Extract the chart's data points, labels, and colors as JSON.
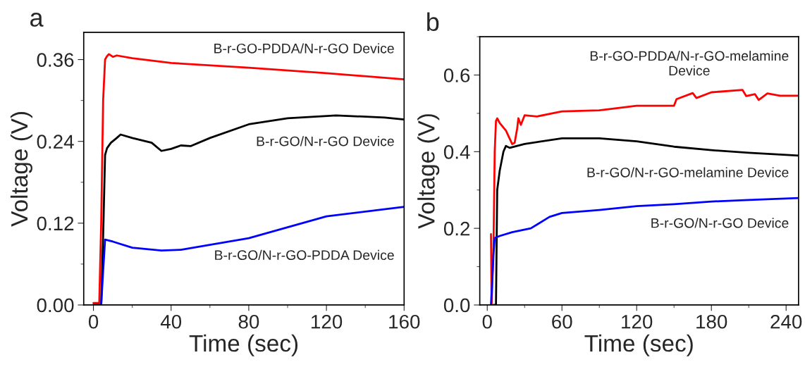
{
  "chart_data": [
    {
      "type": "line",
      "title": "a",
      "xlabel": "Time (sec)",
      "ylabel": "Voltage (V)",
      "xlim": [
        -5,
        160
      ],
      "ylim": [
        0,
        0.4
      ],
      "xticks": [
        0,
        40,
        80,
        120,
        160
      ],
      "yticks": [
        {
          "value": 0,
          "label": "0.00"
        },
        {
          "value": 0.12,
          "label": "0.12"
        },
        {
          "value": 0.24,
          "label": "0.24"
        },
        {
          "value": 0.36,
          "label": "0.36"
        }
      ],
      "grid": false,
      "legend": false,
      "marker": "none",
      "line_style": "solid",
      "series": [
        {
          "name": "B-r-GO-PDDA/N-r-GO Device",
          "color": "#ff0000",
          "x": [
            0,
            3,
            4,
            5,
            6,
            7,
            8,
            10,
            12,
            20,
            40,
            80,
            120,
            160
          ],
          "values": [
            0.003,
            0.003,
            0.12,
            0.3,
            0.36,
            0.365,
            0.368,
            0.364,
            0.366,
            0.362,
            0.355,
            0.348,
            0.34,
            0.331
          ]
        },
        {
          "name": "B-r-GO/N-r-GO Device",
          "color": "#000000",
          "x": [
            0,
            4,
            5,
            6,
            7,
            9,
            12,
            14,
            20,
            30,
            35,
            40,
            45,
            50,
            60,
            80,
            100,
            125,
            150,
            160
          ],
          "values": [
            0,
            0,
            0.1,
            0.22,
            0.23,
            0.238,
            0.245,
            0.25,
            0.245,
            0.238,
            0.226,
            0.229,
            0.234,
            0.233,
            0.245,
            0.265,
            0.274,
            0.278,
            0.275,
            0.272
          ]
        },
        {
          "name": "B-r-GO/N-r-GO-PDDA Device",
          "color": "#0000ff",
          "x": [
            0,
            4,
            5,
            6,
            10,
            20,
            35,
            45,
            80,
            120,
            160
          ],
          "values": [
            0,
            0,
            0.05,
            0.096,
            0.093,
            0.084,
            0.08,
            0.081,
            0.098,
            0.13,
            0.144
          ]
        }
      ]
    },
    {
      "type": "line",
      "title": "b",
      "xlabel": "Time (sec)",
      "ylabel": "Voltage (V)",
      "xlim": [
        -6,
        250
      ],
      "ylim": [
        0,
        0.7
      ],
      "xticks": [
        0,
        60,
        120,
        180,
        240
      ],
      "yticks": [
        {
          "value": 0,
          "label": "0.0"
        },
        {
          "value": 0.2,
          "label": "0.2"
        },
        {
          "value": 0.4,
          "label": "0.4"
        },
        {
          "value": 0.6,
          "label": "0.6"
        }
      ],
      "grid": false,
      "legend": false,
      "marker": "none",
      "line_style": "solid",
      "series": [
        {
          "name": "B-r-GO-PDDA/N-r-GO-melamine\nDevice",
          "color": "#ff0000",
          "x": [
            3,
            3.5,
            5,
            6,
            7,
            8,
            10,
            15,
            20,
            22,
            24,
            25,
            27,
            30,
            40,
            60,
            90,
            120,
            150,
            152,
            165,
            168,
            180,
            205,
            208,
            215,
            218,
            225,
            235,
            250
          ],
          "values": [
            0.185,
            0.0,
            0.15,
            0.4,
            0.48,
            0.487,
            0.475,
            0.455,
            0.42,
            0.423,
            0.46,
            0.487,
            0.47,
            0.495,
            0.492,
            0.505,
            0.508,
            0.52,
            0.52,
            0.537,
            0.553,
            0.54,
            0.555,
            0.561,
            0.545,
            0.55,
            0.535,
            0.552,
            0.546,
            0.546
          ]
        },
        {
          "name": "B-r-GO/N-r-GO-melamine Device",
          "color": "#000000",
          "x": [
            5,
            7,
            8,
            10,
            13,
            15,
            18,
            30,
            60,
            90,
            120,
            150,
            180,
            210,
            250
          ],
          "values": [
            0,
            0,
            0.3,
            0.35,
            0.4,
            0.415,
            0.41,
            0.42,
            0.435,
            0.435,
            0.427,
            0.413,
            0.404,
            0.397,
            0.39
          ]
        },
        {
          "name": "B-r-GO/N-r-GO Device",
          "color": "#0000ff",
          "x": [
            3,
            5,
            6,
            10,
            20,
            35,
            40,
            50,
            60,
            90,
            120,
            150,
            180,
            210,
            250
          ],
          "values": [
            0,
            0.13,
            0.175,
            0.18,
            0.19,
            0.2,
            0.21,
            0.23,
            0.24,
            0.248,
            0.258,
            0.263,
            0.27,
            0.274,
            0.279
          ]
        }
      ]
    }
  ]
}
